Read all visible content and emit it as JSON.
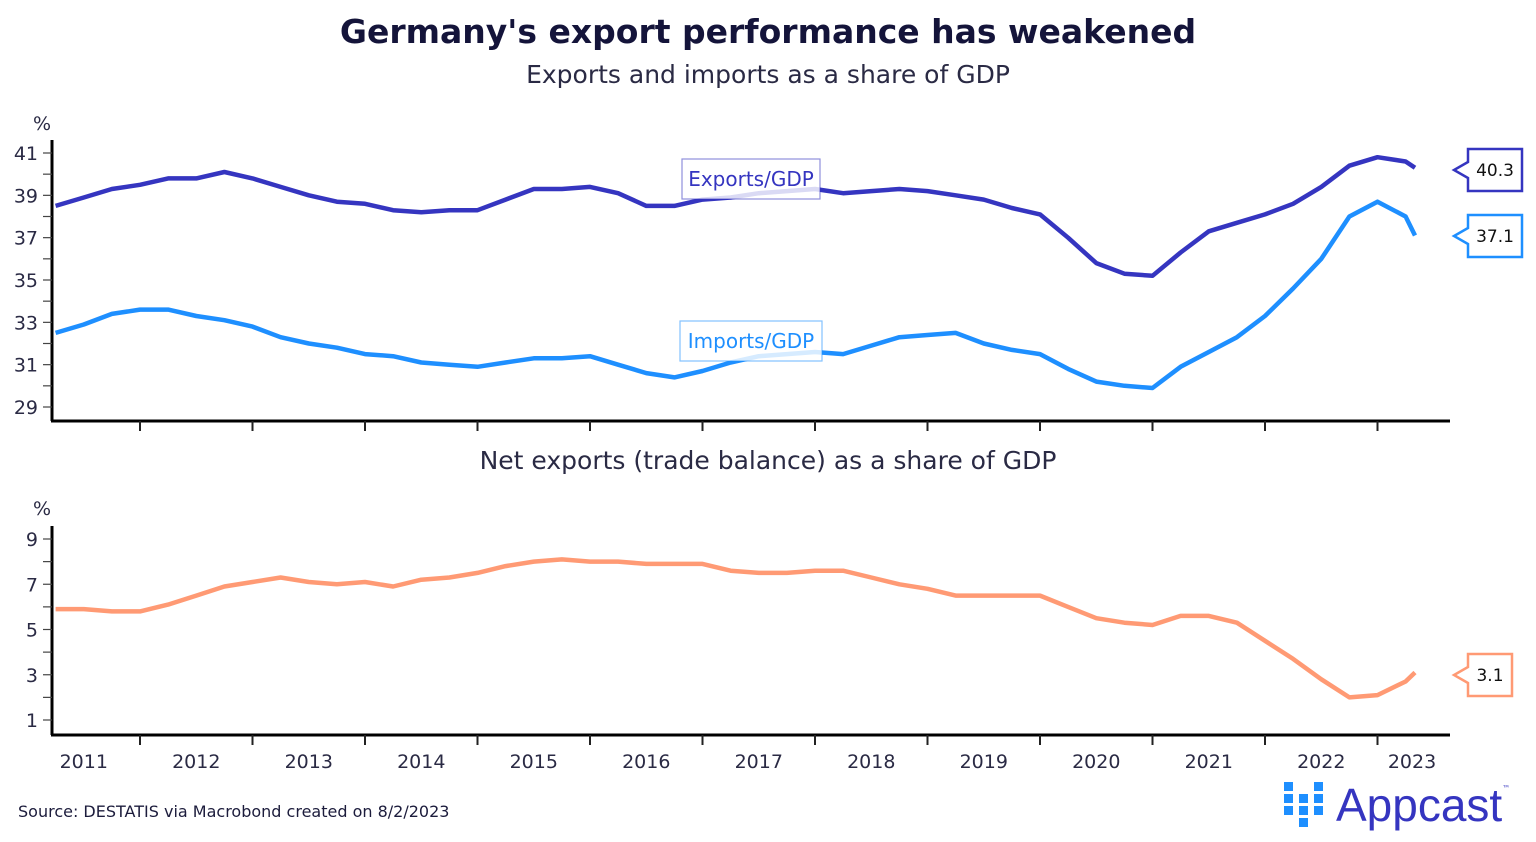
{
  "title": "Germany's export performance has weakened",
  "source": "Source: DESTATIS via Macrobond created on 8/2/2023",
  "logo": {
    "text": "Appcast",
    "tm": "™"
  },
  "colors": {
    "exports": "#3535c0",
    "imports": "#1e8fff",
    "net": "#ff9a74",
    "axis": "#000000",
    "text": "#2a2a44"
  },
  "chart_data": [
    {
      "type": "line",
      "title": "Exports and imports as a share of GDP",
      "ylabel": "%",
      "ylim": [
        29,
        41
      ],
      "yticks": [
        "41",
        "39",
        "37",
        "35",
        "33",
        "31",
        "29"
      ],
      "x": [
        "2011-04",
        "2011-07",
        "2011-10",
        "2012-01",
        "2012-04",
        "2012-07",
        "2012-10",
        "2013-01",
        "2013-04",
        "2013-07",
        "2013-10",
        "2014-01",
        "2014-04",
        "2014-07",
        "2014-10",
        "2015-01",
        "2015-04",
        "2015-07",
        "2015-10",
        "2016-01",
        "2016-04",
        "2016-07",
        "2016-10",
        "2017-01",
        "2017-04",
        "2017-07",
        "2017-10",
        "2018-01",
        "2018-04",
        "2018-07",
        "2018-10",
        "2019-01",
        "2019-04",
        "2019-07",
        "2019-10",
        "2020-01",
        "2020-04",
        "2020-07",
        "2020-10",
        "2021-01",
        "2021-04",
        "2021-07",
        "2021-10",
        "2022-01",
        "2022-04",
        "2022-07",
        "2022-10",
        "2023-01",
        "2023-04",
        "2023-05"
      ],
      "series": [
        {
          "name": "Exports/GDP",
          "color": "#3535c0",
          "last_label": "40.3",
          "values": [
            38.5,
            38.9,
            39.3,
            39.5,
            39.8,
            39.8,
            40.1,
            39.8,
            39.4,
            39.0,
            38.7,
            38.6,
            38.3,
            38.2,
            38.3,
            38.3,
            38.8,
            39.3,
            39.3,
            39.4,
            39.1,
            38.5,
            38.5,
            38.8,
            38.9,
            39.1,
            39.2,
            39.3,
            39.1,
            39.2,
            39.3,
            39.2,
            39.0,
            38.8,
            38.4,
            38.1,
            37.0,
            35.8,
            35.3,
            35.2,
            36.3,
            37.3,
            37.7,
            38.1,
            38.6,
            39.4,
            40.4,
            40.8,
            40.6,
            40.3
          ]
        },
        {
          "name": "Imports/GDP",
          "color": "#1e8fff",
          "last_label": "37.1",
          "values": [
            32.5,
            32.9,
            33.4,
            33.6,
            33.6,
            33.3,
            33.1,
            32.8,
            32.3,
            32.0,
            31.8,
            31.5,
            31.4,
            31.1,
            31.0,
            30.9,
            31.1,
            31.3,
            31.3,
            31.4,
            31.0,
            30.6,
            30.4,
            30.7,
            31.1,
            31.4,
            31.5,
            31.6,
            31.5,
            31.9,
            32.3,
            32.4,
            32.5,
            32.0,
            31.7,
            31.5,
            30.8,
            30.2,
            30.0,
            29.9,
            30.9,
            31.6,
            32.3,
            33.3,
            34.6,
            36.0,
            38.0,
            38.7,
            38.0,
            37.1
          ]
        }
      ],
      "grid": false
    },
    {
      "type": "line",
      "title": "Net exports (trade balance) as a share of GDP",
      "ylabel": "%",
      "ylim": [
        1,
        9
      ],
      "yticks": [
        "9",
        "7",
        "5",
        "3",
        "1"
      ],
      "xticklabels": [
        "2011",
        "2012",
        "2013",
        "2014",
        "2015",
        "2016",
        "2017",
        "2018",
        "2019",
        "2020",
        "2021",
        "2022",
        "2023"
      ],
      "x": [
        "2011-04",
        "2011-07",
        "2011-10",
        "2012-01",
        "2012-04",
        "2012-07",
        "2012-10",
        "2013-01",
        "2013-04",
        "2013-07",
        "2013-10",
        "2014-01",
        "2014-04",
        "2014-07",
        "2014-10",
        "2015-01",
        "2015-04",
        "2015-07",
        "2015-10",
        "2016-01",
        "2016-04",
        "2016-07",
        "2016-10",
        "2017-01",
        "2017-04",
        "2017-07",
        "2017-10",
        "2018-01",
        "2018-04",
        "2018-07",
        "2018-10",
        "2019-01",
        "2019-04",
        "2019-07",
        "2019-10",
        "2020-01",
        "2020-04",
        "2020-07",
        "2020-10",
        "2021-01",
        "2021-04",
        "2021-07",
        "2021-10",
        "2022-01",
        "2022-04",
        "2022-07",
        "2022-10",
        "2023-01",
        "2023-04",
        "2023-05"
      ],
      "series": [
        {
          "color": "#ff9a74",
          "last_label": "3.1",
          "values": [
            5.9,
            5.9,
            5.8,
            5.8,
            6.1,
            6.5,
            6.9,
            7.1,
            7.3,
            7.1,
            7.0,
            7.1,
            6.9,
            7.2,
            7.3,
            7.5,
            7.8,
            8.0,
            8.1,
            8.0,
            8.0,
            7.9,
            7.9,
            7.9,
            7.6,
            7.5,
            7.5,
            7.6,
            7.6,
            7.3,
            7.0,
            6.8,
            6.5,
            6.5,
            6.5,
            6.5,
            6.0,
            5.5,
            5.3,
            5.2,
            5.6,
            5.6,
            5.3,
            4.5,
            3.7,
            2.8,
            2.0,
            2.1,
            2.7,
            3.1
          ]
        }
      ],
      "grid": false
    }
  ]
}
